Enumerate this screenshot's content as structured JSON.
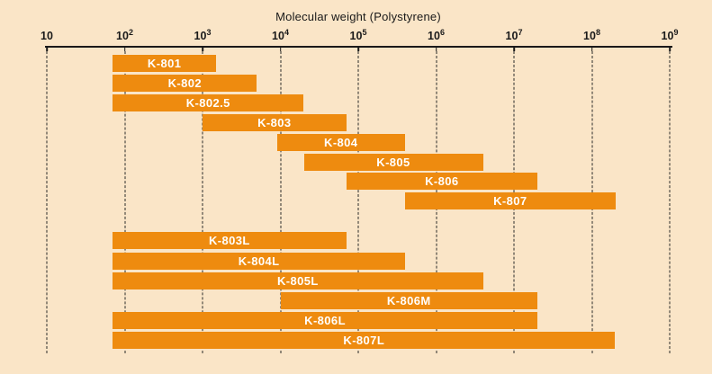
{
  "title": "Molecular weight (Polystyrene)",
  "colors": {
    "background": "#fae5c7",
    "bar": "#ee8b0f",
    "axis": "#1a1a1a",
    "bar_label": "#ffffff"
  },
  "axis": {
    "ticks": [
      {
        "base": "10",
        "exponent": ""
      },
      {
        "base": "10",
        "exponent": "2"
      },
      {
        "base": "10",
        "exponent": "3"
      },
      {
        "base": "10",
        "exponent": "4"
      },
      {
        "base": "10",
        "exponent": "5"
      },
      {
        "base": "10",
        "exponent": "6"
      },
      {
        "base": "10",
        "exponent": "7"
      },
      {
        "base": "10",
        "exponent": "8"
      },
      {
        "base": "10",
        "exponent": "9"
      }
    ]
  },
  "chart_data": {
    "type": "bar",
    "orientation": "horizontal-range",
    "scale": "log10",
    "title": "Molecular weight (Polystyrene)",
    "xlabel": "Molecular weight (Polystyrene)",
    "xlim": [
      10,
      1000000000
    ],
    "grid": "vertical-dashed-per-decade",
    "legend": "none",
    "groups": [
      {
        "name": "standard-columns",
        "bars": [
          {
            "label": "K-801",
            "range": [
              70,
              1500
            ]
          },
          {
            "label": "K-802",
            "range": [
              70,
              5000
            ]
          },
          {
            "label": "K-802.5",
            "range": [
              70,
              20000
            ]
          },
          {
            "label": "K-803",
            "range": [
              1000,
              70000
            ]
          },
          {
            "label": "K-804",
            "range": [
              9000,
              400000
            ]
          },
          {
            "label": "K-805",
            "range": [
              20000,
              4000000
            ]
          },
          {
            "label": "K-806",
            "range": [
              70000,
              20000000
            ]
          },
          {
            "label": "K-807",
            "range": [
              400000,
              200000000
            ]
          }
        ]
      },
      {
        "name": "linear-columns",
        "bars": [
          {
            "label": "K-803L",
            "range": [
              70,
              70000
            ]
          },
          {
            "label": "K-804L",
            "range": [
              70,
              400000
            ]
          },
          {
            "label": "K-805L",
            "range": [
              70,
              4000000
            ]
          },
          {
            "label": "K-806M",
            "range": [
              10000,
              20000000
            ]
          },
          {
            "label": "K-806L",
            "range": [
              70,
              20000000
            ]
          },
          {
            "label": "K-807L",
            "range": [
              70,
              200000000
            ]
          }
        ]
      }
    ]
  }
}
